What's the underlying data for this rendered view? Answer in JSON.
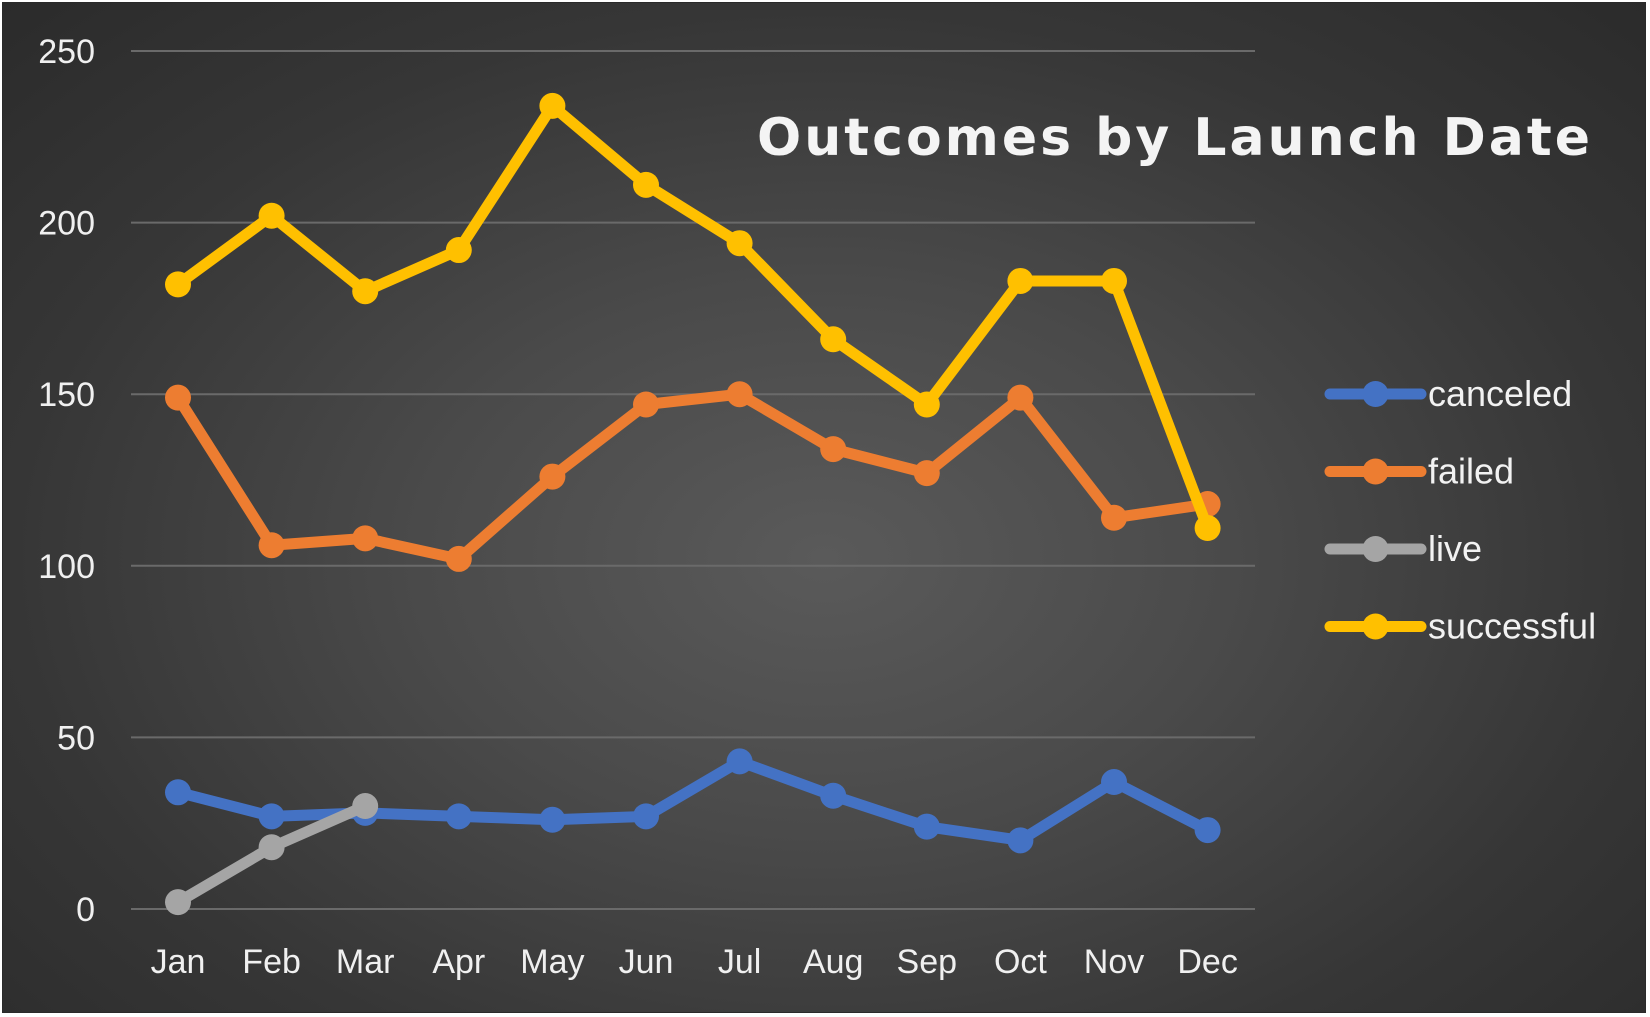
{
  "chart_data": {
    "type": "line",
    "title": "Outcomes by Launch Date",
    "xlabel": "",
    "ylabel": "",
    "categories": [
      "Jan",
      "Feb",
      "Mar",
      "Apr",
      "May",
      "Jun",
      "Jul",
      "Aug",
      "Sep",
      "Oct",
      "Nov",
      "Dec"
    ],
    "ylim": [
      0,
      250
    ],
    "yticks": [
      "0",
      "50",
      "100",
      "150",
      "200",
      "250"
    ],
    "grid": true,
    "legend_position": "right",
    "series": [
      {
        "name": "canceled",
        "color": "#4472c4",
        "values": [
          34,
          27,
          28,
          27,
          26,
          27,
          43,
          33,
          24,
          20,
          37,
          23
        ]
      },
      {
        "name": "failed",
        "color": "#ed7d31",
        "values": [
          149,
          106,
          108,
          102,
          126,
          147,
          150,
          134,
          127,
          149,
          114,
          118
        ]
      },
      {
        "name": "live",
        "color": "#a5a5a5",
        "values": [
          2,
          18,
          30,
          null,
          null,
          null,
          null,
          null,
          null,
          null,
          null,
          null
        ]
      },
      {
        "name": "successful",
        "color": "#ffc000",
        "values": [
          182,
          202,
          180,
          192,
          234,
          211,
          194,
          166,
          147,
          183,
          183,
          111
        ]
      }
    ]
  }
}
